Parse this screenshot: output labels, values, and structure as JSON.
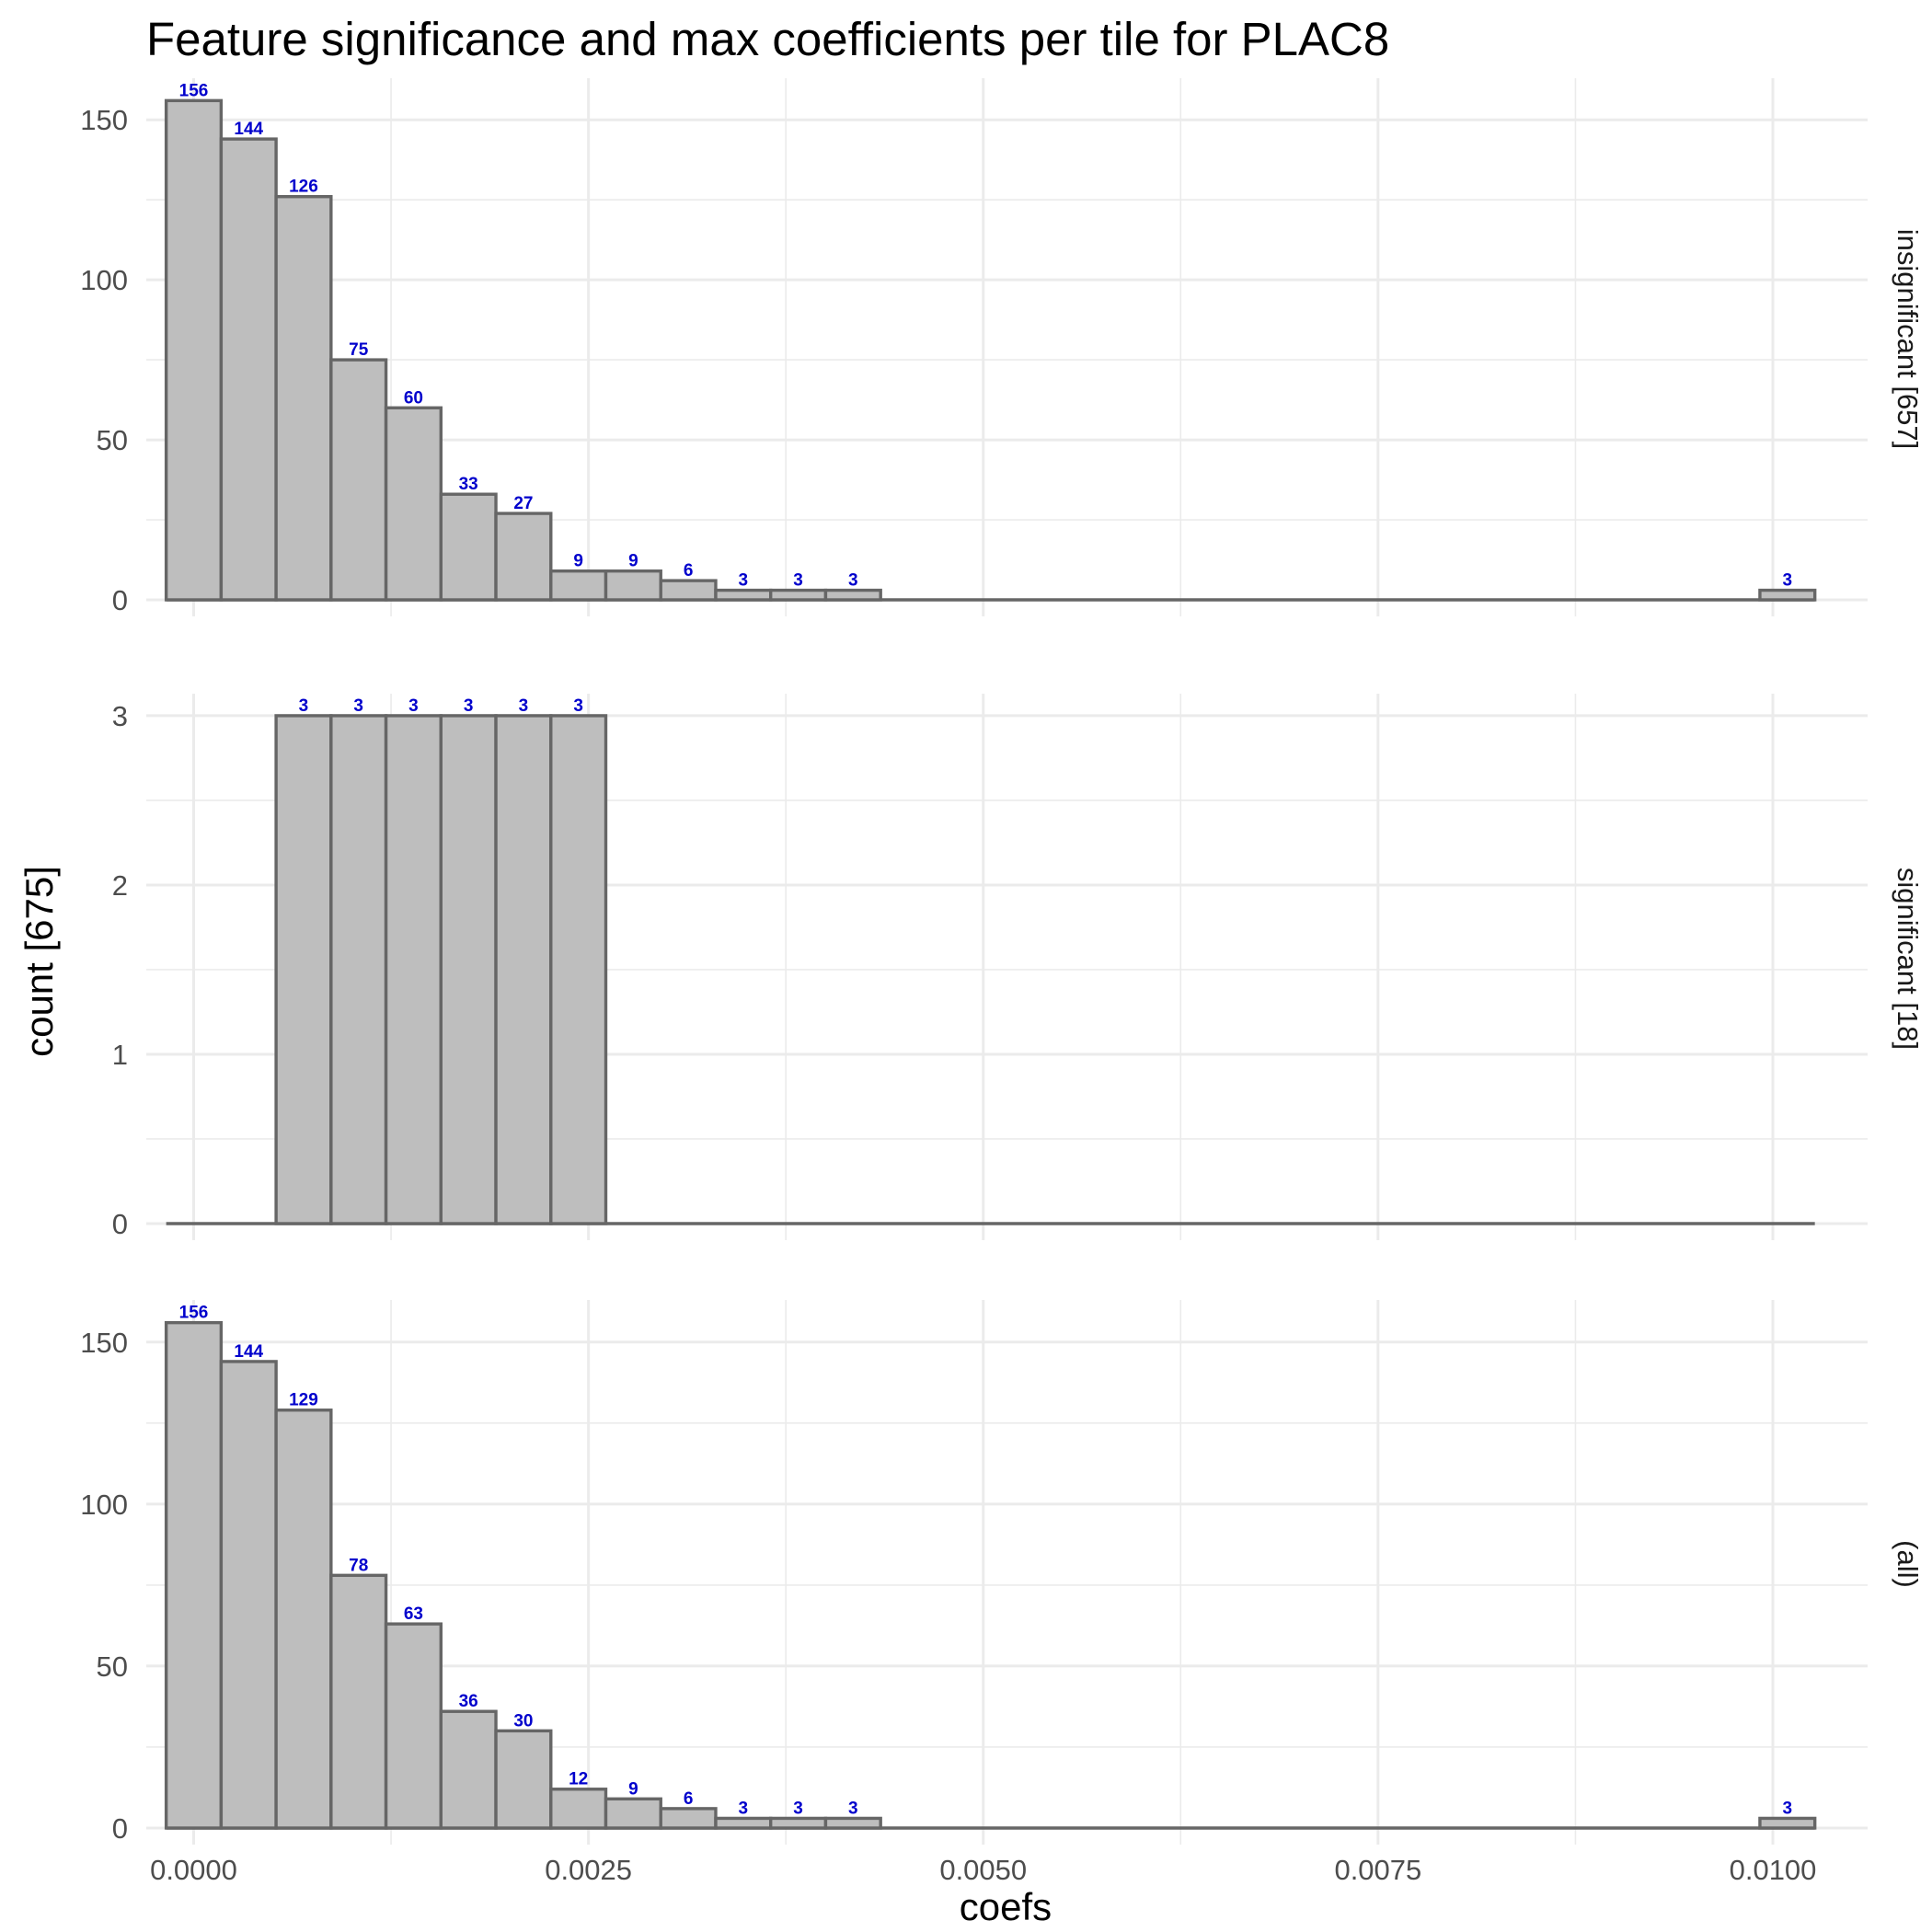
{
  "chart_data": {
    "type": "bar",
    "title": "Feature significance and max coefficients per tile for PLAC8",
    "xlabel": "coefs",
    "ylabel": "count [675]",
    "xlim": [
      -0.0003,
      0.0106
    ],
    "x_ticks": [
      0.0,
      0.0025,
      0.005,
      0.0075,
      0.01
    ],
    "x_tick_labels": [
      "0.0000",
      "0.0025",
      "0.0050",
      "0.0075",
      "0.0100"
    ],
    "bin_width": 0.000348,
    "bin_centers": [
      0.0,
      0.000348,
      0.000696,
      0.001044,
      0.001392,
      0.00174,
      0.002088,
      0.002436,
      0.002784,
      0.003132,
      0.00348,
      0.003828,
      0.004176,
      0.004524,
      0.004872,
      0.00522,
      0.005568,
      0.005916,
      0.006264,
      0.006612,
      0.00696,
      0.007308,
      0.007656,
      0.008004,
      0.008352,
      0.0087,
      0.009048,
      0.009396,
      0.009744,
      0.010092
    ],
    "panels": [
      {
        "strip": "insignificant [657]",
        "ylim": [
          0,
          163
        ],
        "y_ticks": [
          0,
          50,
          100,
          150
        ],
        "y_tick_labels": [
          "0",
          "50",
          "100",
          "150"
        ],
        "values": [
          156,
          144,
          126,
          75,
          60,
          33,
          27,
          9,
          9,
          6,
          3,
          3,
          3,
          0,
          0,
          0,
          0,
          0,
          0,
          0,
          0,
          0,
          0,
          0,
          0,
          0,
          0,
          0,
          0,
          3
        ]
      },
      {
        "strip": "significant [18]",
        "ylim": [
          0,
          3.13
        ],
        "y_ticks": [
          0,
          1,
          2,
          3
        ],
        "y_tick_labels": [
          "0",
          "1",
          "2",
          "3"
        ],
        "values": [
          0,
          0,
          3,
          3,
          3,
          3,
          3,
          3,
          0,
          0,
          0,
          0,
          0,
          0,
          0,
          0,
          0,
          0,
          0,
          0,
          0,
          0,
          0,
          0,
          0,
          0,
          0,
          0,
          0,
          0
        ]
      },
      {
        "strip": "(all)",
        "ylim": [
          0,
          163
        ],
        "y_ticks": [
          0,
          50,
          100,
          150
        ],
        "y_tick_labels": [
          "0",
          "50",
          "100",
          "150"
        ],
        "values": [
          156,
          144,
          129,
          78,
          63,
          36,
          30,
          12,
          9,
          6,
          3,
          3,
          3,
          0,
          0,
          0,
          0,
          0,
          0,
          0,
          0,
          0,
          0,
          0,
          0,
          0,
          0,
          0,
          0,
          3
        ]
      }
    ],
    "grid": true,
    "legend": "none",
    "colors": {
      "bar_fill": "#bebebe",
      "bar_outline": "#666666",
      "count_label": "#0000cc"
    }
  }
}
